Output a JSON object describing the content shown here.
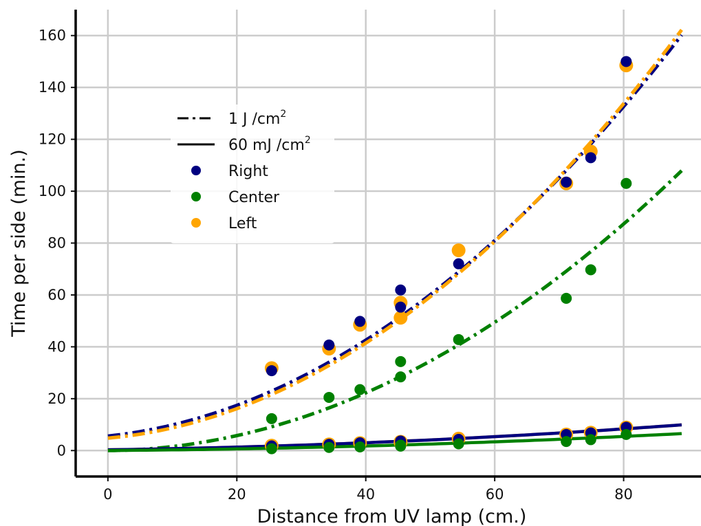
{
  "chart_data": {
    "type": "scatter",
    "xlabel": "Distance from UV lamp (cm.)",
    "ylabel": "Time per side (min.)",
    "xlim": [
      -5,
      92
    ],
    "ylim": [
      -10,
      170
    ],
    "x_ticks": [
      0,
      20,
      40,
      60,
      80
    ],
    "y_ticks": [
      0,
      20,
      40,
      60,
      80,
      100,
      120,
      140,
      160
    ],
    "grid": true,
    "legend_position": "upper-left",
    "legend": [
      {
        "label": "1 J /cm",
        "sup": "2",
        "style": "dash-dot",
        "color": "#000000"
      },
      {
        "label": "60 mJ /cm",
        "sup": "2",
        "style": "solid",
        "color": "#000000"
      },
      {
        "label": "Right",
        "style": "marker",
        "color": "#000080"
      },
      {
        "label": "Center",
        "style": "marker",
        "color": "#008000"
      },
      {
        "label": "Left",
        "style": "marker",
        "color": "#ffa500"
      }
    ],
    "series": [
      {
        "name": "Left",
        "color": "#ffa500",
        "marker_size": "large",
        "x": [
          25.4,
          34.3,
          39.1,
          45.4,
          45.4,
          54.4,
          71.1,
          74.9,
          80.4
        ],
        "y_1J": [
          31.8,
          39.3,
          48.5,
          57.0,
          51.2,
          77.2,
          103.0,
          115.3,
          148.5
        ],
        "y_60mJ": [
          1.9,
          2.4,
          2.9,
          3.4,
          3.1,
          4.6,
          6.2,
          6.9,
          8.9
        ]
      },
      {
        "name": "Right",
        "color": "#000080",
        "marker_size": "medium",
        "x": [
          25.4,
          34.3,
          39.1,
          45.4,
          45.4,
          54.4,
          71.1,
          74.9,
          80.4
        ],
        "y_1J": [
          30.8,
          40.7,
          49.8,
          61.9,
          55.3,
          72.0,
          103.5,
          112.9,
          150.0
        ],
        "y_60mJ": [
          1.8,
          2.4,
          3.0,
          3.7,
          3.3,
          4.3,
          6.2,
          6.8,
          9.0
        ]
      },
      {
        "name": "Center",
        "color": "#008000",
        "marker_size": "medium",
        "x": [
          25.4,
          34.3,
          39.1,
          45.4,
          45.4,
          54.4,
          71.1,
          74.9,
          80.4
        ],
        "y_1J": [
          12.3,
          20.5,
          23.5,
          34.3,
          28.4,
          42.8,
          58.7,
          69.7,
          103.0
        ],
        "y_60mJ": [
          0.7,
          1.2,
          1.4,
          2.1,
          1.7,
          2.6,
          3.5,
          4.2,
          6.2
        ]
      }
    ],
    "fits": [
      {
        "series": "Right",
        "dose": "1 J /cm2",
        "style": "dash-dot",
        "color": "#000080",
        "coeffs": [
          5.6,
          0.26,
          0.0166
        ],
        "x_range": [
          0,
          89
        ]
      },
      {
        "series": "Left",
        "dose": "1 J /cm2",
        "style": "dash-dot",
        "color": "#ffa500",
        "coeffs": [
          4.8,
          0.22,
          0.0174
        ],
        "x_range": [
          0,
          89
        ]
      },
      {
        "series": "Center",
        "dose": "1 J /cm2",
        "style": "dash-dot",
        "color": "#008000",
        "coeffs": [
          0,
          0.02,
          0.0134
        ],
        "x_range": [
          0,
          89
        ]
      },
      {
        "series": "Left",
        "dose": "60 mJ /cm2",
        "style": "solid",
        "color": "#ffa500",
        "coeffs": [
          0.3,
          0.035,
          0.00082
        ],
        "x_range": [
          0,
          89
        ]
      },
      {
        "series": "Right",
        "dose": "60 mJ /cm2",
        "style": "solid",
        "color": "#000080",
        "coeffs": [
          0.3,
          0.035,
          0.00082
        ],
        "x_range": [
          0,
          89
        ]
      },
      {
        "series": "Center",
        "dose": "60 mJ /cm2",
        "style": "solid",
        "color": "#008000",
        "coeffs": [
          0,
          0.02,
          0.0006
        ],
        "x_range": [
          0,
          89
        ]
      }
    ]
  }
}
